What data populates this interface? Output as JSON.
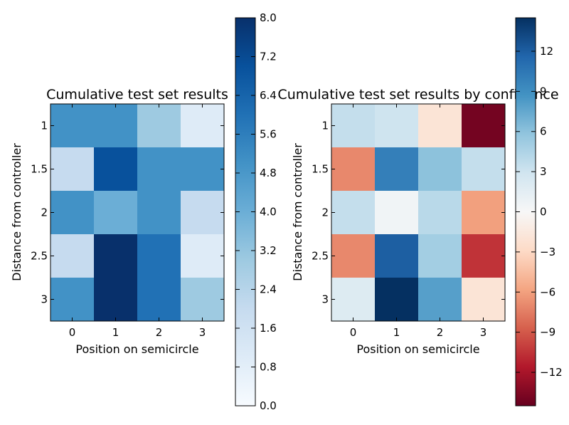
{
  "chart_data": [
    {
      "type": "heatmap",
      "title": "Cumulative test set results",
      "xlabel": "Position on semicircle",
      "ylabel": "Distance from controller",
      "x_tick_labels": [
        "0",
        "1",
        "2",
        "3"
      ],
      "y_tick_labels": [
        "1",
        "1.5",
        "2",
        "2.5",
        "3"
      ],
      "colormap": "Blues",
      "colorbar": {
        "vmin": 0,
        "vmax": 8,
        "ticks": [
          "0.0",
          "0.8",
          "1.6",
          "2.4",
          "3.2",
          "4.0",
          "4.8",
          "5.6",
          "6.4",
          "7.2",
          "8.0"
        ]
      },
      "values": [
        [
          5,
          5,
          3,
          1
        ],
        [
          2,
          7,
          5,
          5
        ],
        [
          5,
          4,
          5,
          2
        ],
        [
          2,
          8,
          6,
          1
        ],
        [
          5,
          8,
          6,
          3
        ]
      ]
    },
    {
      "type": "heatmap",
      "title": "Cumulative test set results by confidence",
      "xlabel": "Position on semicircle",
      "ylabel": "Distance from controller",
      "x_tick_labels": [
        "0",
        "1",
        "2",
        "3"
      ],
      "y_tick_labels": [
        "1",
        "1.5",
        "2",
        "2.5",
        "3"
      ],
      "colormap": "RdBu",
      "colorbar": {
        "vmin": -14.5,
        "vmax": 14.5,
        "ticks": [
          "−12",
          "−9",
          "−6",
          "−3",
          "0",
          "3",
          "6",
          "9",
          "12"
        ]
      },
      "values": [
        [
          3.5,
          3,
          -2,
          -14
        ],
        [
          -7,
          10,
          6,
          3.5
        ],
        [
          3.5,
          0.5,
          4,
          -6
        ],
        [
          -7,
          12,
          5,
          -10.5
        ],
        [
          2,
          14.5,
          8,
          -2
        ]
      ]
    }
  ]
}
